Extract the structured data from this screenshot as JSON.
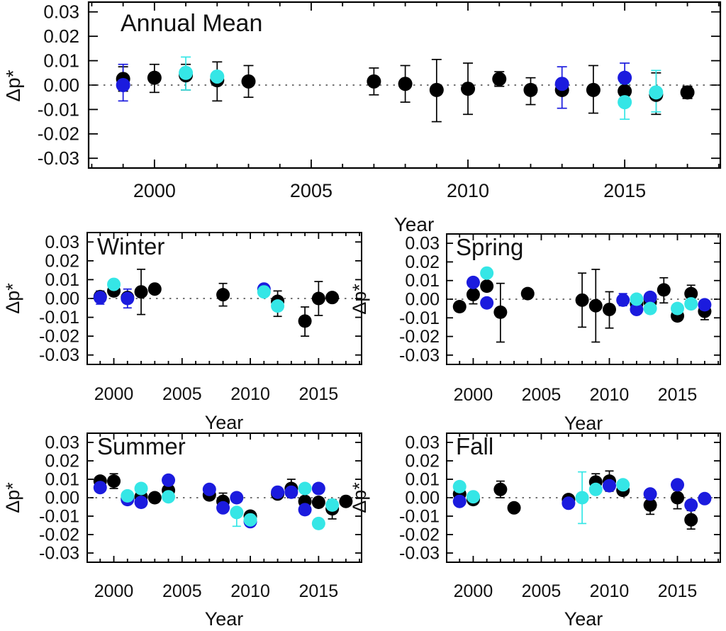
{
  "figure": {
    "background": "#ffffff",
    "description": "Five-panel scatter figure of Delta p* versus Year"
  },
  "chart_data": {
    "type": "scatter",
    "xlabel": "Year",
    "ylabel": "Δp*",
    "xticks": [
      2000,
      2005,
      2010,
      2015
    ],
    "xtick_labels": [
      "2000",
      "2005",
      "2010",
      "2015"
    ],
    "yticks": [
      0.03,
      0.02,
      0.01,
      0.0,
      -0.01,
      -0.02,
      -0.03
    ],
    "ytick_labels": [
      "0.03",
      "0.02",
      "0.01",
      "0.00",
      "-0.01",
      "-0.02",
      "-0.03"
    ],
    "year_minor_ticks": [
      1998,
      2018
    ],
    "grid": false,
    "legend": "none",
    "zero_line": true,
    "series_colors": {
      "black": "#000000",
      "blue": "#1b1bde",
      "cyan": "#35e6e6"
    },
    "point_format": "[year, value, err_down, err_up]",
    "panels": [
      {
        "id": "annual",
        "title": "Annual Mean",
        "xlabel": "Year",
        "ylabel": "Δp*",
        "xlim": [
          1997.9,
          2018.05
        ],
        "ylim": [
          -0.034,
          0.034
        ],
        "series": [
          {
            "name": "black",
            "color": "#000000",
            "points": [
              [
                1999,
                0.0025,
                0.005,
                0.005
              ],
              [
                2000,
                0.003,
                0.006,
                0.0055
              ],
              [
                2001,
                0.004,
                0.006,
                0.0045
              ],
              [
                2002,
                0.002,
                0.0085,
                0.0075
              ],
              [
                2003,
                0.0015,
                0.0065,
                0.0065
              ],
              [
                2007,
                0.0015,
                0.0055,
                0.0055
              ],
              [
                2008,
                0.0005,
                0.0075,
                0.0075
              ],
              [
                2009,
                -0.002,
                0.013,
                0.0125
              ],
              [
                2010,
                -0.0015,
                0.0105,
                0.0105
              ],
              [
                2011,
                0.0025,
                0.003,
                0.003
              ],
              [
                2012,
                -0.002,
                0.006,
                0.005
              ],
              [
                2013,
                -0.002,
                0,
                0
              ],
              [
                2014,
                -0.002,
                0.0095,
                0.01
              ],
              [
                2015,
                -0.0025,
                0,
                0
              ],
              [
                2016,
                -0.004,
                0.008,
                0.009
              ],
              [
                2017,
                -0.003,
                0.0025,
                0.0025
              ]
            ]
          },
          {
            "name": "blue",
            "color": "#1b1bde",
            "points": [
              [
                1999,
                0.0,
                0.0065,
                0.0085
              ],
              [
                2013,
                0.0005,
                0.01,
                0.007
              ],
              [
                2015,
                0.003,
                0.006,
                0.006
              ]
            ]
          },
          {
            "name": "cyan",
            "color": "#35e6e6",
            "points": [
              [
                2001,
                0.005,
                0.007,
                0.0065
              ],
              [
                2002,
                0.0035,
                0,
                0
              ],
              [
                2015,
                -0.007,
                0.007,
                0.0075
              ],
              [
                2016,
                -0.003,
                0.008,
                0.009
              ]
            ]
          }
        ]
      },
      {
        "id": "winter",
        "title": "Winter",
        "xlabel": "Year",
        "ylabel": "Δp*",
        "xlim": [
          1998.05,
          2018.15
        ],
        "ylim": [
          -0.035,
          0.035
        ],
        "series": [
          {
            "name": "black",
            "color": "#000000",
            "points": [
              [
                1999,
                0.001,
                0.003,
                0.003
              ],
              [
                2000,
                0.004,
                0,
                0
              ],
              [
                2001,
                0.0005,
                0,
                0
              ],
              [
                2002,
                0.0035,
                0.012,
                0.012
              ],
              [
                2003,
                0.005,
                0,
                0
              ],
              [
                2008,
                0.002,
                0.006,
                0.006
              ],
              [
                2012,
                -0.0015,
                0.008,
                0.0055
              ],
              [
                2014,
                -0.012,
                0.008,
                0.0075
              ],
              [
                2015,
                0.0,
                0.009,
                0.009
              ],
              [
                2016,
                0.0005,
                0,
                0
              ]
            ]
          },
          {
            "name": "blue",
            "color": "#1b1bde",
            "points": [
              [
                1999,
                0.0005,
                0.0035,
                0.0035
              ],
              [
                2001,
                0.0,
                0.005,
                0.005
              ],
              [
                2011,
                0.005,
                0,
                0
              ]
            ]
          },
          {
            "name": "cyan",
            "color": "#35e6e6",
            "points": [
              [
                2000,
                0.0075,
                0,
                0
              ],
              [
                2011,
                0.0035,
                0,
                0
              ],
              [
                2012,
                -0.004,
                0,
                0
              ]
            ]
          }
        ]
      },
      {
        "id": "spring",
        "title": "Spring",
        "xlabel": "Year",
        "ylabel": "Δp*",
        "xlim": [
          1998.05,
          2018.15
        ],
        "ylim": [
          -0.035,
          0.035
        ],
        "series": [
          {
            "name": "black",
            "color": "#000000",
            "points": [
              [
                1999,
                -0.004,
                0,
                0
              ],
              [
                2000,
                0.0025,
                0.005,
                0.005
              ],
              [
                2001,
                0.007,
                0,
                0
              ],
              [
                2002,
                -0.007,
                0.016,
                0.0155
              ],
              [
                2004,
                0.003,
                0,
                0
              ],
              [
                2008,
                -0.0005,
                0.0145,
                0.0145
              ],
              [
                2009,
                -0.0035,
                0.0195,
                0.0195
              ],
              [
                2010,
                -0.0055,
                0.01,
                0.0095
              ],
              [
                2012,
                -0.0025,
                0,
                0
              ],
              [
                2013,
                -0.0015,
                0,
                0
              ],
              [
                2014,
                0.005,
                0.007,
                0.0065
              ],
              [
                2015,
                -0.009,
                0,
                0
              ],
              [
                2016,
                0.003,
                0.005,
                0.0045
              ],
              [
                2017,
                -0.0065,
                0.0045,
                0.0045
              ]
            ]
          },
          {
            "name": "blue",
            "color": "#1b1bde",
            "points": [
              [
                2000,
                0.009,
                0,
                0
              ],
              [
                2001,
                -0.002,
                0,
                0
              ],
              [
                2011,
                -0.0005,
                0.003,
                0.0035
              ],
              [
                2012,
                -0.0055,
                0,
                0
              ],
              [
                2013,
                0.001,
                0,
                0
              ],
              [
                2017,
                -0.003,
                0,
                0
              ]
            ]
          },
          {
            "name": "cyan",
            "color": "#35e6e6",
            "points": [
              [
                2001,
                0.014,
                0,
                0
              ],
              [
                2012,
                0.0,
                0,
                0
              ],
              [
                2013,
                -0.005,
                0,
                0
              ],
              [
                2015,
                -0.005,
                0,
                0
              ],
              [
                2016,
                -0.0025,
                0,
                0
              ]
            ]
          }
        ]
      },
      {
        "id": "summer",
        "title": "Summer",
        "xlabel": "Year",
        "ylabel": "Δp*",
        "xlim": [
          1998.05,
          2018.15
        ],
        "ylim": [
          -0.035,
          0.035
        ],
        "series": [
          {
            "name": "black",
            "color": "#000000",
            "points": [
              [
                1999,
                0.009,
                0,
                0
              ],
              [
                2000,
                0.009,
                0.004,
                0.004
              ],
              [
                2001,
                -0.0005,
                0,
                0
              ],
              [
                2002,
                0.0005,
                0,
                0
              ],
              [
                2003,
                0.0,
                0.002,
                0.002
              ],
              [
                2004,
                0.004,
                0,
                0
              ],
              [
                2007,
                0.0015,
                0,
                0
              ],
              [
                2008,
                -0.002,
                0.0045,
                0.0045
              ],
              [
                2010,
                -0.01,
                0,
                0
              ],
              [
                2012,
                0.002,
                0,
                0
              ],
              [
                2013,
                0.005,
                0.005,
                0.005
              ],
              [
                2014,
                -0.002,
                0,
                0
              ],
              [
                2015,
                -0.0025,
                0,
                0
              ],
              [
                2016,
                -0.006,
                0.0055,
                0.005
              ],
              [
                2017,
                -0.002,
                0,
                0
              ]
            ]
          },
          {
            "name": "blue",
            "color": "#1b1bde",
            "points": [
              [
                1999,
                0.0055,
                0,
                0
              ],
              [
                2001,
                -0.001,
                0,
                0
              ],
              [
                2002,
                -0.0025,
                0,
                0
              ],
              [
                2004,
                0.0095,
                0,
                0
              ],
              [
                2007,
                0.0045,
                0,
                0
              ],
              [
                2008,
                -0.0055,
                0,
                0
              ],
              [
                2009,
                0.0,
                0,
                0
              ],
              [
                2010,
                -0.013,
                0,
                0
              ],
              [
                2012,
                0.003,
                0,
                0
              ],
              [
                2013,
                0.003,
                0,
                0
              ],
              [
                2014,
                -0.0065,
                0,
                0
              ],
              [
                2015,
                0.005,
                0,
                0
              ]
            ]
          },
          {
            "name": "cyan",
            "color": "#35e6e6",
            "points": [
              [
                2001,
                0.001,
                0,
                0
              ],
              [
                2002,
                0.005,
                0,
                0
              ],
              [
                2004,
                0.0005,
                0,
                0
              ],
              [
                2009,
                -0.008,
                0.0075,
                0.002
              ],
              [
                2010,
                -0.012,
                0,
                0
              ],
              [
                2014,
                0.005,
                0,
                0
              ],
              [
                2015,
                -0.014,
                0,
                0
              ],
              [
                2016,
                -0.004,
                0,
                0
              ]
            ]
          }
        ]
      },
      {
        "id": "fall",
        "title": "Fall",
        "xlabel": "Year",
        "ylabel": "Δp*",
        "xlim": [
          1998.05,
          2018.15
        ],
        "ylim": [
          -0.035,
          0.035
        ],
        "series": [
          {
            "name": "black",
            "color": "#000000",
            "points": [
              [
                1999,
                0.002,
                0,
                0
              ],
              [
                2000,
                -0.001,
                0,
                0
              ],
              [
                2002,
                0.0045,
                0.0045,
                0.0045
              ],
              [
                2003,
                -0.0055,
                0,
                0
              ],
              [
                2007,
                -0.001,
                0,
                0
              ],
              [
                2009,
                0.0085,
                0.004,
                0.0045
              ],
              [
                2010,
                0.009,
                0.0055,
                0.0055
              ],
              [
                2011,
                0.004,
                0,
                0
              ],
              [
                2013,
                -0.004,
                0.005,
                0.0015
              ],
              [
                2015,
                0.0,
                0.006,
                0.004
              ],
              [
                2016,
                -0.012,
                0.005,
                0.005
              ]
            ]
          },
          {
            "name": "blue",
            "color": "#1b1bde",
            "points": [
              [
                1999,
                -0.002,
                0,
                0
              ],
              [
                2007,
                -0.003,
                0,
                0
              ],
              [
                2010,
                0.0065,
                0,
                0
              ],
              [
                2013,
                0.002,
                0,
                0
              ],
              [
                2015,
                0.007,
                0,
                0
              ],
              [
                2016,
                -0.004,
                0,
                0
              ],
              [
                2017,
                -0.0005,
                0,
                0
              ]
            ]
          },
          {
            "name": "cyan",
            "color": "#35e6e6",
            "points": [
              [
                1999,
                0.006,
                0,
                0
              ],
              [
                2000,
                0.0005,
                0,
                0
              ],
              [
                2008,
                0.0,
                0.014,
                0.014
              ],
              [
                2009,
                0.0045,
                0,
                0
              ],
              [
                2011,
                0.007,
                0,
                0
              ]
            ]
          }
        ]
      }
    ]
  }
}
